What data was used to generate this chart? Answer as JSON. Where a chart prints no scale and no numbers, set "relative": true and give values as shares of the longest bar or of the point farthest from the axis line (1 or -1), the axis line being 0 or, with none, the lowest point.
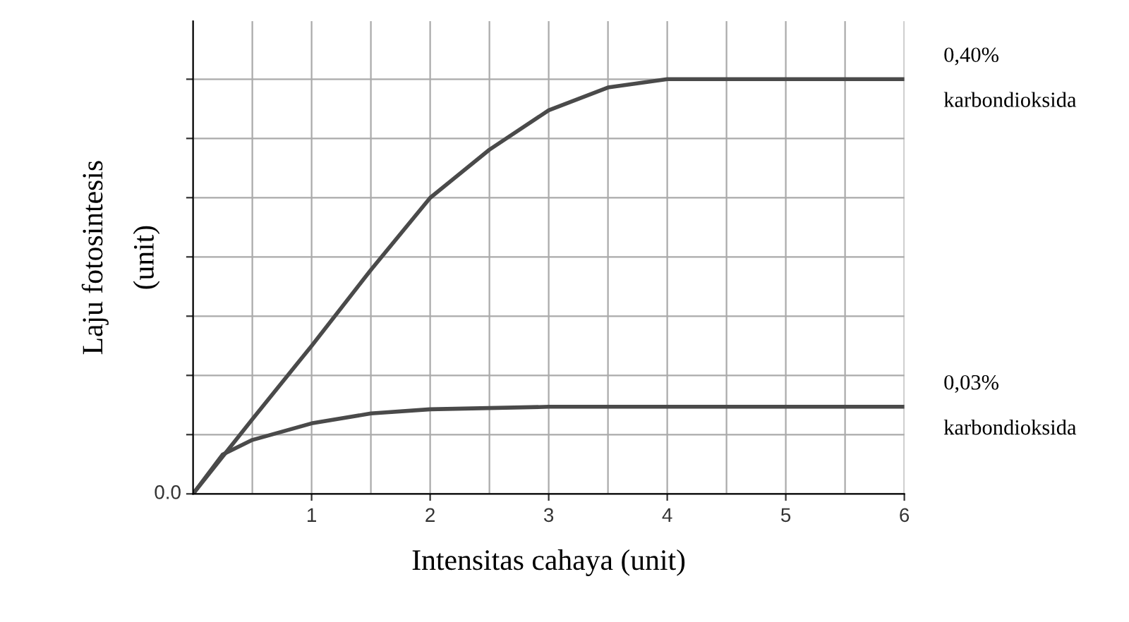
{
  "chart_data": {
    "type": "line",
    "relative": true,
    "xlabel": "Intensitas cahaya (unit)",
    "ylabel": "Laju fotosintesis\n(unit)",
    "xlim": [
      0,
      6
    ],
    "xticks": [
      1,
      2,
      3,
      4,
      5,
      6
    ],
    "grid": true,
    "marker": "none",
    "line_style": "solid",
    "annotations": [
      "0.0"
    ],
    "series": [
      {
        "name": "0,40%\n\nkarbondioksida",
        "color": "#4a4a4a",
        "x": [
          0,
          0.5,
          1,
          1.5,
          2,
          2.5,
          3,
          3.5,
          4,
          5,
          6
        ],
        "values": [
          0,
          0.18,
          0.357,
          0.54,
          0.714,
          0.83,
          0.925,
          0.98,
          1.0,
          1.0,
          1.0
        ]
      },
      {
        "name": "0,03%\n\nkarbondioksida",
        "color": "#4a4a4a",
        "x": [
          0,
          0.25,
          0.5,
          1,
          1.5,
          2,
          3,
          4,
          5,
          6
        ],
        "values": [
          0,
          0.095,
          0.13,
          0.17,
          0.194,
          0.204,
          0.21,
          0.21,
          0.21,
          0.21
        ]
      }
    ]
  }
}
